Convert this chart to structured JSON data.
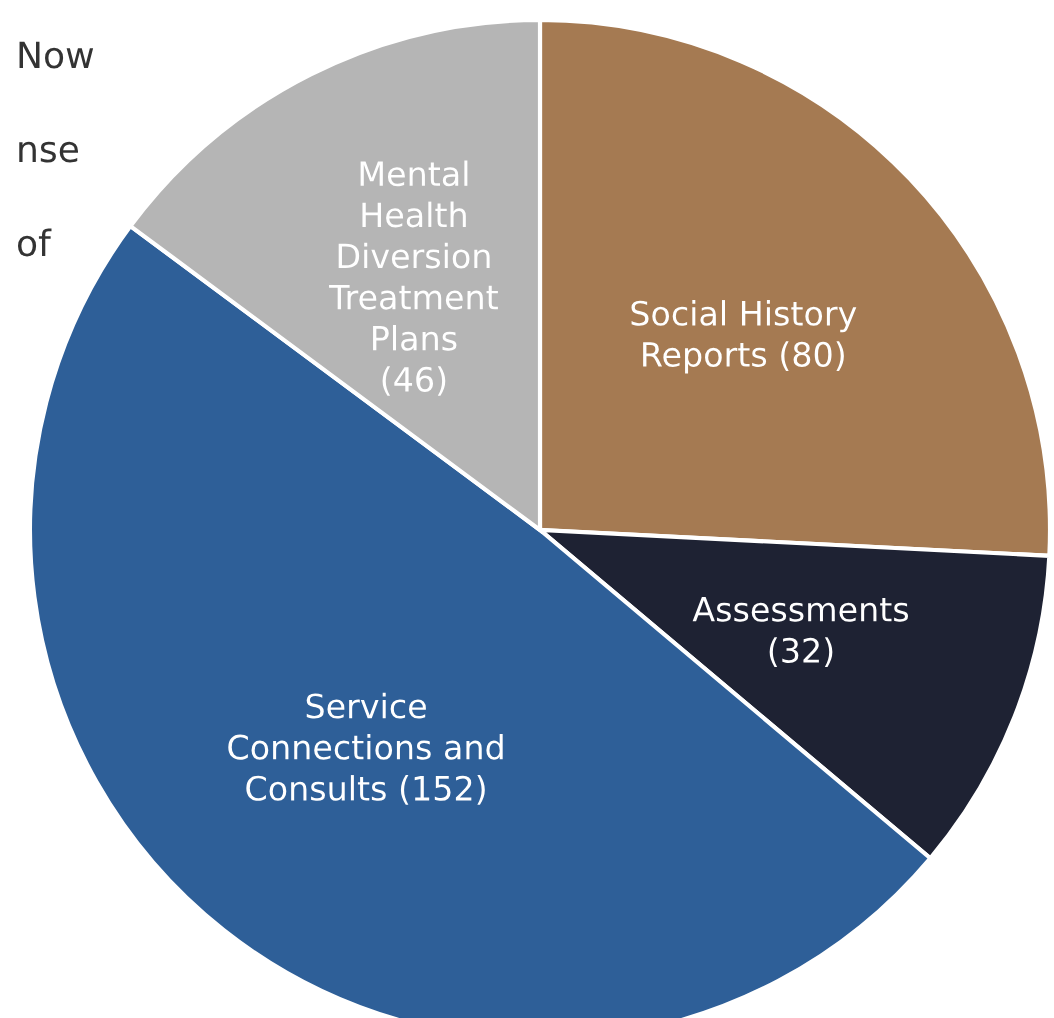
{
  "chart_data": {
    "type": "pie",
    "categories": [
      "Social History\nReports (80)",
      "Assessments\n(32)",
      "Service\nConnections and\nConsults (152)",
      "Mental\nHealth\nDiversion\nTreatment\nPlans\n(46)"
    ],
    "values": [
      80,
      32,
      152,
      46
    ],
    "colors": [
      "#a57a52",
      "#1e2233",
      "#2e5f98",
      "#b5b5b5"
    ],
    "annotations": [
      "Now",
      "nse",
      "of"
    ],
    "legend": false
  }
}
